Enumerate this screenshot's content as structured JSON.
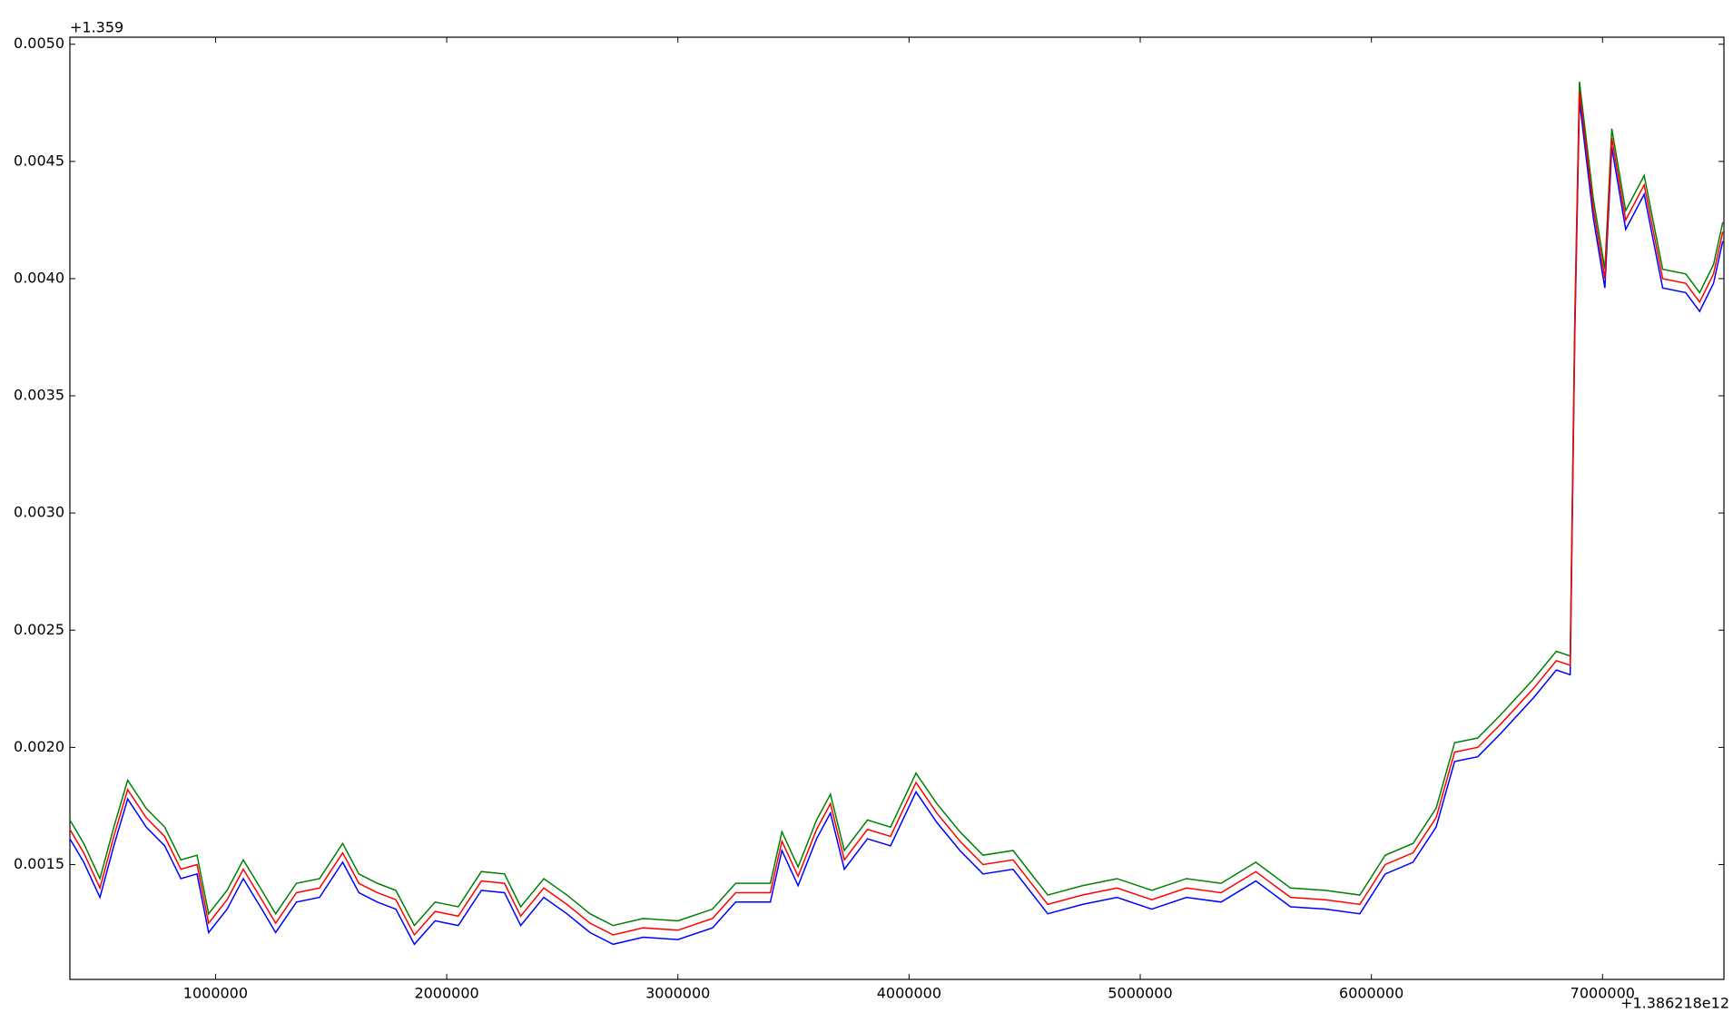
{
  "chart_data": {
    "type": "line",
    "x_offset_label": "+1.386218e12",
    "y_offset_label": "+1.359",
    "x": [
      370000,
      430000,
      500000,
      560000,
      620000,
      700000,
      780000,
      850000,
      920000,
      970000,
      1050000,
      1120000,
      1200000,
      1260000,
      1350000,
      1450000,
      1550000,
      1620000,
      1700000,
      1780000,
      1860000,
      1950000,
      2050000,
      2150000,
      2250000,
      2320000,
      2420000,
      2520000,
      2620000,
      2720000,
      2850000,
      3000000,
      3150000,
      3250000,
      3400000,
      3450000,
      3520000,
      3600000,
      3660000,
      3720000,
      3820000,
      3920000,
      4030000,
      4120000,
      4220000,
      4320000,
      4450000,
      4600000,
      4750000,
      4900000,
      5050000,
      5200000,
      5350000,
      5500000,
      5650000,
      5800000,
      5950000,
      6060000,
      6180000,
      6280000,
      6360000,
      6460000,
      6560000,
      6700000,
      6800000,
      6860000,
      6880000,
      6900000,
      6960000,
      7010000,
      7040000,
      7100000,
      7180000,
      7260000,
      7360000,
      7420000,
      7480000,
      7520000
    ],
    "series": [
      {
        "color": "#0000ff",
        "values": [
          0.00161,
          0.00151,
          0.00136,
          0.00158,
          0.00178,
          0.00166,
          0.00158,
          0.00144,
          0.00146,
          0.00121,
          0.00131,
          0.00144,
          0.00131,
          0.00121,
          0.00134,
          0.00136,
          0.00151,
          0.00138,
          0.00134,
          0.00131,
          0.00116,
          0.00126,
          0.00124,
          0.00139,
          0.00138,
          0.00124,
          0.00136,
          0.00129,
          0.00121,
          0.00116,
          0.00119,
          0.00118,
          0.00123,
          0.00134,
          0.00134,
          0.00156,
          0.00141,
          0.00161,
          0.00172,
          0.00148,
          0.00161,
          0.00158,
          0.00181,
          0.00168,
          0.00156,
          0.00146,
          0.00148,
          0.00129,
          0.00133,
          0.00136,
          0.00131,
          0.00136,
          0.00134,
          0.00143,
          0.00132,
          0.00131,
          0.00129,
          0.00146,
          0.00151,
          0.00166,
          0.00194,
          0.00196,
          0.00206,
          0.00221,
          0.00233,
          0.00231,
          0.00376,
          0.00476,
          0.00426,
          0.00396,
          0.00456,
          0.00421,
          0.00436,
          0.00396,
          0.00394,
          0.00386,
          0.00398,
          0.00416
        ]
      },
      {
        "color": "#008000",
        "values": [
          0.00169,
          0.00159,
          0.00144,
          0.00166,
          0.00186,
          0.00174,
          0.00166,
          0.00152,
          0.00154,
          0.00129,
          0.00139,
          0.00152,
          0.00139,
          0.00129,
          0.00142,
          0.00144,
          0.00159,
          0.00146,
          0.00142,
          0.00139,
          0.00124,
          0.00134,
          0.00132,
          0.00147,
          0.00146,
          0.00132,
          0.00144,
          0.00137,
          0.00129,
          0.00124,
          0.00127,
          0.00126,
          0.00131,
          0.00142,
          0.00142,
          0.00164,
          0.00149,
          0.00169,
          0.0018,
          0.00156,
          0.00169,
          0.00166,
          0.00189,
          0.00176,
          0.00164,
          0.00154,
          0.00156,
          0.00137,
          0.00141,
          0.00144,
          0.00139,
          0.00144,
          0.00142,
          0.00151,
          0.0014,
          0.00139,
          0.00137,
          0.00154,
          0.00159,
          0.00174,
          0.00202,
          0.00204,
          0.00214,
          0.00229,
          0.00241,
          0.00239,
          0.00384,
          0.00484,
          0.00434,
          0.00404,
          0.00464,
          0.00429,
          0.00444,
          0.00404,
          0.00402,
          0.00394,
          0.00406,
          0.00424
        ]
      },
      {
        "color": "#ff0000",
        "values": [
          0.00165,
          0.00155,
          0.0014,
          0.00162,
          0.00182,
          0.0017,
          0.00162,
          0.00148,
          0.0015,
          0.00125,
          0.00135,
          0.00148,
          0.00135,
          0.00125,
          0.00138,
          0.0014,
          0.00155,
          0.00142,
          0.00138,
          0.00135,
          0.0012,
          0.0013,
          0.00128,
          0.00143,
          0.00142,
          0.00128,
          0.0014,
          0.00133,
          0.00125,
          0.0012,
          0.00123,
          0.00122,
          0.00127,
          0.00138,
          0.00138,
          0.0016,
          0.00145,
          0.00165,
          0.00176,
          0.00152,
          0.00165,
          0.00162,
          0.00185,
          0.00172,
          0.0016,
          0.0015,
          0.00152,
          0.00133,
          0.00137,
          0.0014,
          0.00135,
          0.0014,
          0.00138,
          0.00147,
          0.00136,
          0.00135,
          0.00133,
          0.0015,
          0.00155,
          0.0017,
          0.00198,
          0.002,
          0.0021,
          0.00225,
          0.00237,
          0.00235,
          0.0038,
          0.0048,
          0.0043,
          0.004,
          0.0046,
          0.00425,
          0.0044,
          0.004,
          0.00398,
          0.0039,
          0.00402,
          0.0042
        ]
      }
    ],
    "xlim": [
      370000,
      7525000
    ],
    "xticks": [
      1000000,
      2000000,
      3000000,
      4000000,
      5000000,
      6000000,
      7000000
    ],
    "ylim": [
      0.00101,
      0.00503
    ],
    "yticks": [
      0.0015,
      {
        "value": 0.002,
        "label": "0.0020"
      },
      0.0025,
      {
        "value": 0.003,
        "label": "0.0030"
      },
      0.0035,
      {
        "value": 0.004,
        "label": "0.0040"
      },
      0.0045,
      {
        "value": 0.005,
        "label": "0.0050"
      }
    ],
    "grid": false
  }
}
